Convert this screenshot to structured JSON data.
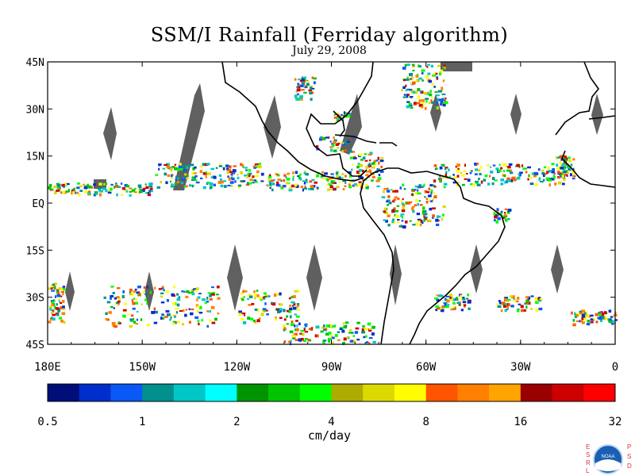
{
  "title": "SSM/I Rainfall (Ferriday algorithm)",
  "subtitle": "July 29, 2008",
  "units": "cm/day",
  "y_ticks": [
    "45N",
    "30N",
    "15N",
    "EQ",
    "15S",
    "30S",
    "45S"
  ],
  "x_ticks": [
    "180E",
    "150W",
    "120W",
    "90W",
    "60W",
    "30W",
    "0"
  ],
  "colorbar": {
    "colors": [
      "#000e7a",
      "#002ecc",
      "#0a58f5",
      "#00908e",
      "#00c6c6",
      "#00ffff",
      "#009500",
      "#00c400",
      "#00fe00",
      "#adab00",
      "#dcd900",
      "#fffd00",
      "#ff5400",
      "#ff7f00",
      "#ffa400",
      "#990000",
      "#cc0000",
      "#ff0000"
    ],
    "labels": [
      "0.5",
      "1",
      "2",
      "4",
      "8",
      "16",
      "32"
    ]
  },
  "legend_colors": {
    "no_data_swath": "#606060",
    "coastline": "#000000"
  },
  "logo": {
    "name": "noaa-logo",
    "side_left": "ESRL",
    "side_right": "PSD",
    "center": "NOAA"
  }
}
